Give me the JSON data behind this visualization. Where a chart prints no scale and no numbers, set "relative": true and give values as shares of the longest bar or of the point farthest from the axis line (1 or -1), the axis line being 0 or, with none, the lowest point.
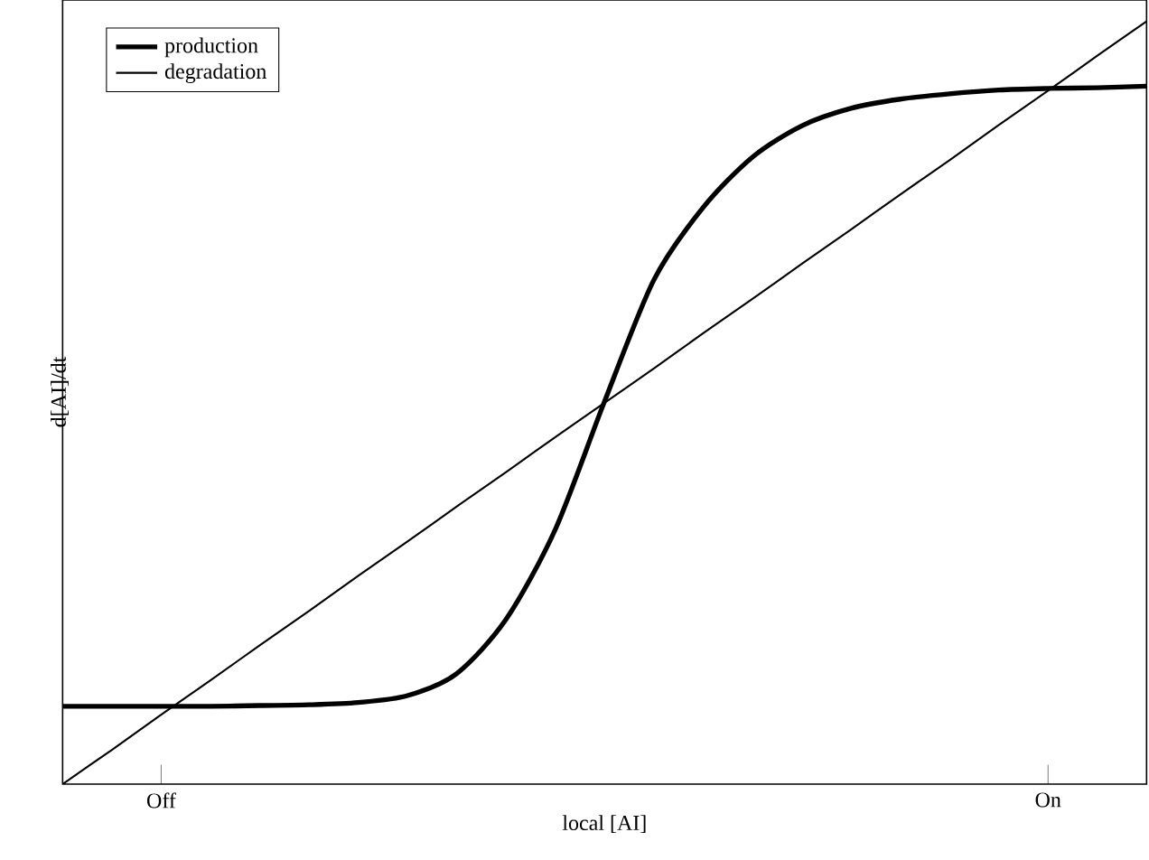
{
  "chart_data": {
    "type": "line",
    "relative": true,
    "xlabel": "local [AI]",
    "ylabel": "d[AI]/dt",
    "categories": [
      null,
      null,
      "Off",
      null,
      null,
      null,
      null,
      null,
      null,
      null,
      null,
      null,
      null,
      null,
      null,
      null,
      null,
      null,
      null,
      null,
      "On",
      null,
      null
    ],
    "tick_labels": "x",
    "legend": "top left",
    "grid": false,
    "series": [
      {
        "name": "production",
        "color": "#000000",
        "values": [
          0.102,
          0.102,
          0.102,
          0.102,
          0.103,
          0.104,
          0.107,
          0.116,
          0.145,
          0.216,
          0.334,
          0.502,
          0.661,
          0.756,
          0.822,
          0.863,
          0.886,
          0.898,
          0.905,
          0.91,
          0.912,
          0.913,
          0.915
        ]
      },
      {
        "name": "degradation",
        "color": "#000000",
        "values": [
          0,
          0.045,
          0.091,
          0.136,
          0.182,
          0.227,
          0.273,
          0.318,
          0.364,
          0.409,
          0.455,
          0.5,
          0.545,
          0.591,
          0.636,
          0.682,
          0.727,
          0.773,
          0.818,
          0.864,
          0.909,
          0.955,
          1
        ]
      }
    ]
  }
}
